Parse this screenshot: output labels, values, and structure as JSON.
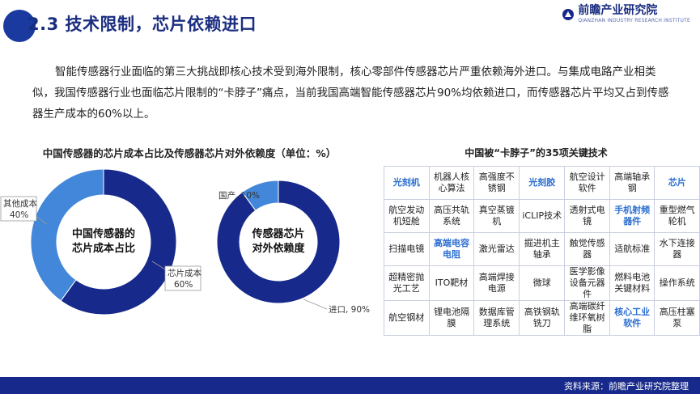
{
  "header": {
    "title": "2.3 技术限制，芯片依赖进口"
  },
  "logo": {
    "name": "前瞻产业研究院",
    "tagline": "QIANZHAN INDUSTRY RESEARCH INSTITUTE"
  },
  "intro": "智能传感器行业面临的第三大挑战即核心技术受到海外限制，核心零部件传感器芯片严重依赖海外进口。与集成电路产业相类似，我国传感器行业也面临芯片限制的“卡脖子”痛点，当前我国高端智能传感器芯片90%均依赖进口，而传感器芯片平均又占到传感器生产成本的60%以上。",
  "chart_section_title": "中国传感器的芯片成本占比及传感器芯片对外依赖度（单位：%）",
  "chart_data": [
    {
      "type": "pie",
      "center_label": [
        "中国传感器的",
        "芯片成本占比"
      ],
      "slices": [
        {
          "label": "芯片成本",
          "value": 60,
          "color": "#17298a"
        },
        {
          "label": "其他成本",
          "value": 40,
          "color": "#4287d9"
        }
      ],
      "slice_labels": [
        {
          "name": "芯片成本",
          "value": "60%"
        },
        {
          "name": "其他成本",
          "value": "40%"
        }
      ]
    },
    {
      "type": "pie",
      "center_label": [
        "传感器芯片",
        "对外依赖度"
      ],
      "slices": [
        {
          "label": "进口",
          "value": 90,
          "color": "#17298a"
        },
        {
          "label": "国产",
          "value": 10,
          "color": "#4287d9"
        }
      ],
      "slice_labels": [
        {
          "name": "进口",
          "value": "进口, 90%"
        },
        {
          "name": "国产",
          "value": "国产, 10%"
        }
      ]
    }
  ],
  "table_title": "中国被“卡脖子”的35项关键技术",
  "tech_table": [
    [
      {
        "text": "光刻机",
        "hl": true
      },
      {
        "text": "机器人核心算法"
      },
      {
        "text": "高强度不锈钢"
      },
      {
        "text": "光刻胶",
        "hl": true
      },
      {
        "text": "航空设计软件"
      },
      {
        "text": "高端轴承钢"
      },
      {
        "text": "芯片",
        "hl": true
      }
    ],
    [
      {
        "text": "航空发动机短舱"
      },
      {
        "text": "高压共轨系统"
      },
      {
        "text": "真空蒸镀机"
      },
      {
        "text": "iCLIP技术"
      },
      {
        "text": "透射式电镜"
      },
      {
        "text": "手机射频器件",
        "hl": true
      },
      {
        "text": "重型燃气轮机"
      }
    ],
    [
      {
        "text": "扫描电镜"
      },
      {
        "text": "高端电容电阻",
        "hl": true
      },
      {
        "text": "激光雷达"
      },
      {
        "text": "掘进机主轴承"
      },
      {
        "text": "触觉传感器"
      },
      {
        "text": "适航标准"
      },
      {
        "text": "水下连接器"
      }
    ],
    [
      {
        "text": "超精密抛光工艺"
      },
      {
        "text": "ITO靶材"
      },
      {
        "text": "高端焊接电源"
      },
      {
        "text": "微球"
      },
      {
        "text": "医学影像设备元器件"
      },
      {
        "text": "燃料电池关键材料"
      },
      {
        "text": "操作系统"
      }
    ],
    [
      {
        "text": "航空钢材"
      },
      {
        "text": "锂电池隔膜"
      },
      {
        "text": "数据库管理系统"
      },
      {
        "text": "高铁钢轨铣刀"
      },
      {
        "text": "高端碳纤维环氧树脂"
      },
      {
        "text": "核心工业软件",
        "hl": true
      },
      {
        "text": "高压柱塞泵"
      }
    ]
  ],
  "footer": {
    "source": "资料来源：前瞻产业研究院整理"
  }
}
